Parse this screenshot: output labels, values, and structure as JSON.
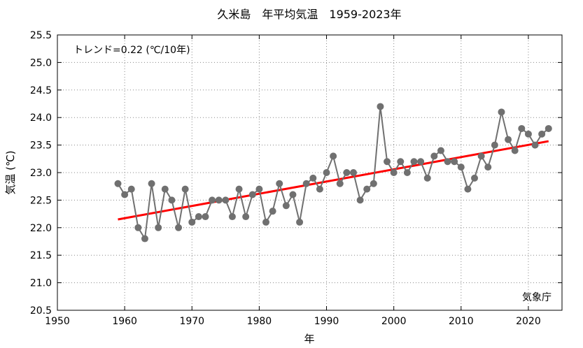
{
  "chart_data": {
    "type": "line",
    "title": "久米島　年平均気温　1959-2023年",
    "xlabel": "年",
    "ylabel": "気温 (℃)",
    "xlim": [
      1950,
      2025
    ],
    "ylim": [
      20.5,
      25.5
    ],
    "xticks": [
      1950,
      1960,
      1970,
      1980,
      1990,
      2000,
      2010,
      2020
    ],
    "yticks": [
      20.5,
      21.0,
      21.5,
      22.0,
      22.5,
      23.0,
      23.5,
      24.0,
      24.5,
      25.0,
      25.5
    ],
    "grid": true,
    "annotations": {
      "trend_label": "トレンド=0.22 (℃/10年)",
      "source": "気象庁"
    },
    "colors": {
      "series": "#707070",
      "trend": "#ff0000"
    },
    "series": [
      {
        "x": [
          1959,
          1960,
          1961,
          1962,
          1963,
          1964,
          1965,
          1966,
          1967,
          1968,
          1969,
          1970,
          1971,
          1972,
          1973,
          1974,
          1975,
          1976,
          1977,
          1978,
          1979,
          1980,
          1981,
          1982,
          1983,
          1984,
          1985,
          1986,
          1987,
          1988,
          1989,
          1990,
          1991,
          1992,
          1993,
          1994,
          1995,
          1996,
          1997,
          1998,
          1999,
          2000,
          2001,
          2002,
          2003,
          2004,
          2005,
          2006,
          2007,
          2008,
          2009,
          2010,
          2011,
          2012,
          2013,
          2014,
          2015,
          2016,
          2017,
          2018,
          2019,
          2020,
          2021,
          2022,
          2023
        ],
        "values": [
          22.8,
          22.6,
          22.7,
          22.0,
          21.8,
          22.8,
          22.0,
          22.7,
          22.5,
          22.0,
          22.7,
          22.1,
          22.2,
          22.2,
          22.5,
          22.5,
          22.5,
          22.2,
          22.7,
          22.2,
          22.6,
          22.7,
          22.1,
          22.3,
          22.8,
          22.4,
          22.6,
          22.1,
          22.8,
          22.9,
          22.7,
          23.0,
          23.3,
          22.8,
          23.0,
          23.0,
          22.5,
          22.7,
          22.8,
          24.2,
          23.2,
          23.0,
          23.2,
          23.0,
          23.2,
          23.2,
          22.9,
          23.3,
          23.4,
          23.2,
          23.2,
          23.1,
          22.7,
          22.9,
          23.3,
          23.1,
          23.5,
          24.1,
          23.6,
          23.4,
          23.8,
          23.7,
          23.5,
          23.7,
          23.8
        ]
      }
    ],
    "trend": {
      "x": [
        1959,
        2023
      ],
      "values": [
        22.15,
        23.57
      ]
    }
  }
}
